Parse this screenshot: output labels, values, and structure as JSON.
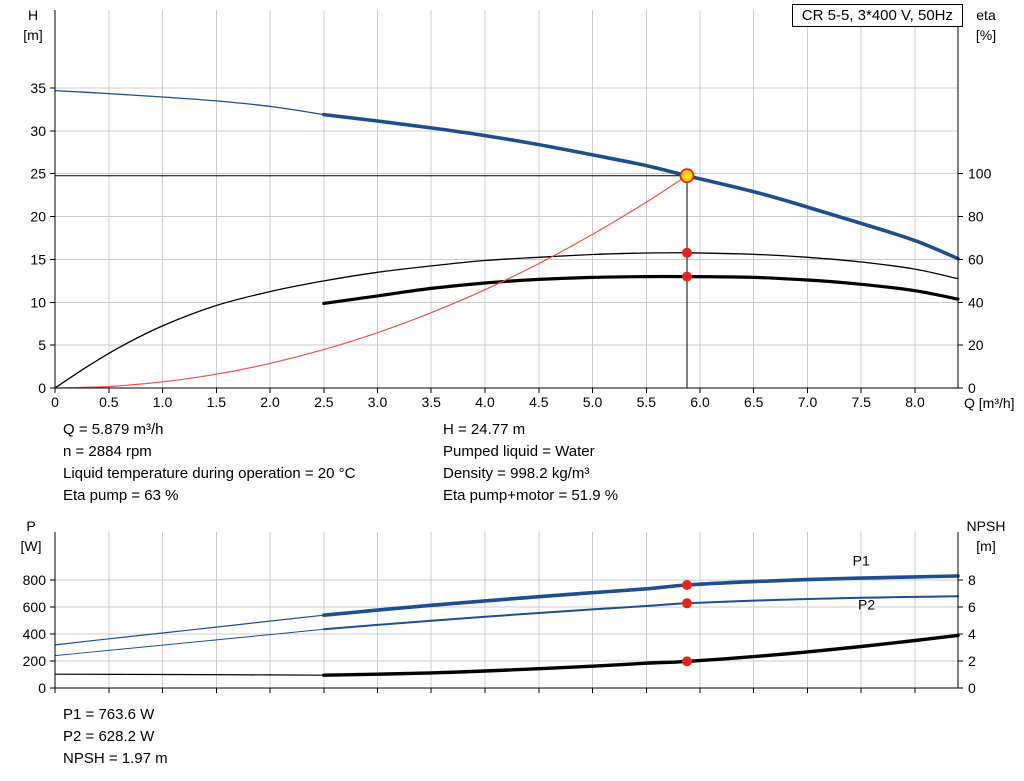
{
  "colors": {
    "blue": "#1f4e8c",
    "red": "#e8231f",
    "soft_red": "#e8524c",
    "marker_yellow": "#ffd900",
    "grid": "#cccccc",
    "axis": "#000000"
  },
  "info_top": {
    "left": [
      "Q = 5.879 m³/h",
      "n = 2884 rpm",
      "Liquid temperature during operation = 20 °C",
      "Eta pump = 63 %"
    ],
    "right": [
      "H = 24.77 m",
      "Pumped liquid = Water",
      "Density = 998.2 kg/m³",
      "Eta pump+motor = 51.9 %"
    ]
  },
  "info_bottom": [
    "P1 = 763.6 W",
    "P2 = 628.2 W",
    "NPSH = 1.97 m"
  ],
  "chart_data": [
    {
      "type": "line",
      "name": "qh-eta",
      "title": "CR 5-5, 3*400 V, 50Hz",
      "xlabel": "Q [m³/h]",
      "ylabel_left": [
        "H",
        "[m]"
      ],
      "ylabel_right": [
        "eta",
        "[%]"
      ],
      "xlim": [
        0,
        8.4
      ],
      "ylim_left": [
        0,
        44.1
      ],
      "ylim_right": [
        0,
        176.4
      ],
      "xticks": [
        0,
        0.5,
        1,
        1.5,
        2,
        2.5,
        3,
        3.5,
        4,
        4.5,
        5,
        5.5,
        6,
        6.5,
        7,
        7.5,
        8
      ],
      "xtick_labels": [
        "0",
        "0.5",
        "1.0",
        "1.5",
        "2.0",
        "2.5",
        "3.0",
        "3.5",
        "4.0",
        "4.5",
        "5.0",
        "5.5",
        "6.0",
        "6.5",
        "7.0",
        "7.5",
        "8.0"
      ],
      "show_xtick_labels": true,
      "yticks_left": [
        0,
        5,
        10,
        15,
        20,
        25,
        30,
        35
      ],
      "ytick_labels_left": [
        "0",
        "5",
        "10",
        "15",
        "20",
        "25",
        "30",
        "35"
      ],
      "yticks_right": [
        0,
        20,
        40,
        60,
        80,
        100
      ],
      "ytick_labels_right": [
        "0",
        "20",
        "40",
        "60",
        "80",
        "100"
      ],
      "guide_lines": [
        {
          "name": "duty-flow-line",
          "orient": "v",
          "x": 5.879,
          "from": 0,
          "to": 24.77,
          "axis": "left"
        },
        {
          "name": "duty-head-line",
          "orient": "h",
          "y": 24.77,
          "from": 0,
          "to": 5.879,
          "axis": "left"
        }
      ],
      "series": [
        {
          "name": "qh-curve-low-flow",
          "axis": "left",
          "color": "blue",
          "width": 1.3,
          "points": [
            [
              0,
              34.7
            ],
            [
              0.5,
              34.35
            ],
            [
              1,
              33.95
            ],
            [
              1.5,
              33.5
            ],
            [
              2,
              32.85
            ],
            [
              2.5,
              31.9
            ]
          ]
        },
        {
          "name": "qh-curve-main",
          "axis": "left",
          "color": "blue",
          "width": 3.6,
          "points": [
            [
              2.5,
              31.9
            ],
            [
              3,
              31.15
            ],
            [
              3.5,
              30.35
            ],
            [
              4,
              29.45
            ],
            [
              4.5,
              28.4
            ],
            [
              5,
              27.2
            ],
            [
              5.5,
              25.95
            ],
            [
              5.879,
              24.77
            ],
            [
              6.5,
              22.9
            ],
            [
              7,
              21.1
            ],
            [
              7.5,
              19.2
            ],
            [
              8,
              17.2
            ],
            [
              8.4,
              15.1
            ]
          ]
        },
        {
          "name": "eta-pump-curve",
          "axis": "right",
          "color": "black",
          "width": 1.3,
          "points": [
            [
              0,
              0
            ],
            [
              0.3,
              10
            ],
            [
              0.6,
              19
            ],
            [
              1,
              29
            ],
            [
              1.5,
              38.5
            ],
            [
              2,
              45
            ],
            [
              2.5,
              50
            ],
            [
              3,
              54
            ],
            [
              3.5,
              57
            ],
            [
              4,
              59.5
            ],
            [
              4.5,
              61
            ],
            [
              5,
              62.3
            ],
            [
              5.5,
              63
            ],
            [
              5.879,
              63.1
            ],
            [
              6.5,
              62.4
            ],
            [
              7,
              61
            ],
            [
              7.5,
              58.8
            ],
            [
              8,
              55.5
            ],
            [
              8.4,
              51
            ]
          ]
        },
        {
          "name": "eta-pump-motor-curve",
          "axis": "right",
          "color": "black",
          "width": 3.2,
          "points": [
            [
              2.5,
              39.5
            ],
            [
              3,
              43
            ],
            [
              3.5,
              46.5
            ],
            [
              4,
              49
            ],
            [
              4.5,
              50.7
            ],
            [
              5,
              51.6
            ],
            [
              5.5,
              52
            ],
            [
              5.879,
              52
            ],
            [
              6.5,
              51.6
            ],
            [
              7,
              50.4
            ],
            [
              7.5,
              48.4
            ],
            [
              8,
              45.4
            ],
            [
              8.4,
              41.5
            ]
          ]
        },
        {
          "name": "system-curve",
          "axis": "left",
          "color": "soft_red",
          "width": 1.2,
          "points": [
            [
              0,
              0
            ],
            [
              0.5,
              0.18
            ],
            [
              1,
              0.72
            ],
            [
              1.5,
              1.61
            ],
            [
              2,
              2.87
            ],
            [
              2.5,
              4.48
            ],
            [
              3,
              6.45
            ],
            [
              3.5,
              8.78
            ],
            [
              4,
              11.47
            ],
            [
              4.5,
              14.51
            ],
            [
              5,
              17.92
            ],
            [
              5.5,
              21.68
            ],
            [
              5.879,
              24.77
            ]
          ]
        }
      ],
      "markers": [
        {
          "name": "duty-point-marker",
          "style": "duty",
          "x": 5.879,
          "y": 24.77,
          "axis": "left"
        },
        {
          "name": "eta-pump-marker",
          "style": "dot",
          "x": 5.879,
          "y": 63.1,
          "axis": "right"
        },
        {
          "name": "eta-pump-motor-marker",
          "style": "dot",
          "x": 5.879,
          "y": 52,
          "axis": "right"
        }
      ],
      "plot_labels": []
    },
    {
      "type": "line",
      "name": "power-npsh",
      "title": "",
      "xlabel": "",
      "ylabel_left": [
        "P",
        "[W]"
      ],
      "ylabel_right": [
        "NPSH",
        "[m]"
      ],
      "xlim": [
        0,
        8.4
      ],
      "ylim_left": [
        0,
        1157
      ],
      "ylim_right": [
        0,
        11.57
      ],
      "xticks": [
        0,
        0.5,
        1,
        1.5,
        2,
        2.5,
        3,
        3.5,
        4,
        4.5,
        5,
        5.5,
        6,
        6.5,
        7,
        7.5,
        8
      ],
      "xtick_labels": [],
      "show_xtick_labels": false,
      "yticks_left": [
        0,
        200,
        400,
        600,
        800
      ],
      "ytick_labels_left": [
        "0",
        "200",
        "400",
        "600",
        "800"
      ],
      "yticks_right": [
        0,
        2,
        4,
        6,
        8
      ],
      "ytick_labels_right": [
        "0",
        "2",
        "4",
        "6",
        "8"
      ],
      "guide_lines": [],
      "series": [
        {
          "name": "p1-curve-low-flow",
          "axis": "left",
          "color": "blue",
          "width": 1.2,
          "points": [
            [
              0,
              320
            ],
            [
              0.5,
              365
            ],
            [
              1,
              408
            ],
            [
              1.5,
              452
            ],
            [
              2,
              496
            ],
            [
              2.5,
              540
            ]
          ]
        },
        {
          "name": "p1-curve-main",
          "axis": "left",
          "color": "blue",
          "width": 3.6,
          "points": [
            [
              2.5,
              540
            ],
            [
              3,
              578
            ],
            [
              3.5,
              613
            ],
            [
              4,
              646
            ],
            [
              4.5,
              677
            ],
            [
              5,
              707
            ],
            [
              5.5,
              736
            ],
            [
              5.879,
              763.6
            ],
            [
              6.5,
              789
            ],
            [
              7,
              804
            ],
            [
              7.5,
              815
            ],
            [
              8,
              824
            ],
            [
              8.4,
              831
            ]
          ]
        },
        {
          "name": "p2-curve-low-flow",
          "axis": "left",
          "color": "blue",
          "width": 1,
          "points": [
            [
              0,
              240
            ],
            [
              0.5,
              279
            ],
            [
              1,
              318
            ],
            [
              1.5,
              357
            ],
            [
              2,
              396
            ],
            [
              2.5,
              435
            ]
          ]
        },
        {
          "name": "p2-curve-main",
          "axis": "left",
          "color": "blue",
          "width": 2,
          "points": [
            [
              2.5,
              435
            ],
            [
              3,
              468
            ],
            [
              3.5,
              499
            ],
            [
              4,
              528
            ],
            [
              4.5,
              556
            ],
            [
              5,
              583
            ],
            [
              5.5,
              608
            ],
            [
              5.879,
              628.2
            ],
            [
              6.5,
              648
            ],
            [
              7,
              660
            ],
            [
              7.5,
              669
            ],
            [
              8,
              676
            ],
            [
              8.4,
              681
            ]
          ]
        },
        {
          "name": "npsh-curve-low-flow",
          "axis": "right",
          "color": "black",
          "width": 1.2,
          "points": [
            [
              0,
              1.02
            ],
            [
              1,
              1.0
            ],
            [
              2,
              0.97
            ],
            [
              2.5,
              0.95
            ]
          ]
        },
        {
          "name": "npsh-curve-main",
          "axis": "right",
          "color": "black",
          "width": 3.4,
          "points": [
            [
              2.5,
              0.95
            ],
            [
              3,
              1.02
            ],
            [
              3.5,
              1.12
            ],
            [
              4,
              1.26
            ],
            [
              4.5,
              1.43
            ],
            [
              5,
              1.62
            ],
            [
              5.5,
              1.84
            ],
            [
              5.879,
              1.97
            ],
            [
              6.5,
              2.33
            ],
            [
              7,
              2.68
            ],
            [
              7.5,
              3.08
            ],
            [
              8,
              3.52
            ],
            [
              8.4,
              3.9
            ]
          ]
        }
      ],
      "markers": [
        {
          "name": "p1-marker",
          "style": "dot",
          "x": 5.879,
          "y": 763.6,
          "axis": "left"
        },
        {
          "name": "p2-marker",
          "style": "dot",
          "x": 5.879,
          "y": 628.2,
          "axis": "left"
        },
        {
          "name": "npsh-marker",
          "style": "dot",
          "x": 5.879,
          "y": 1.97,
          "axis": "right"
        }
      ],
      "plot_labels": [
        {
          "name": "p1-label",
          "text": "P1",
          "x": 7.5,
          "y": 945,
          "axis": "left"
        },
        {
          "name": "p2-label",
          "text": "P2",
          "x": 7.55,
          "y": 620,
          "axis": "left"
        }
      ]
    }
  ]
}
